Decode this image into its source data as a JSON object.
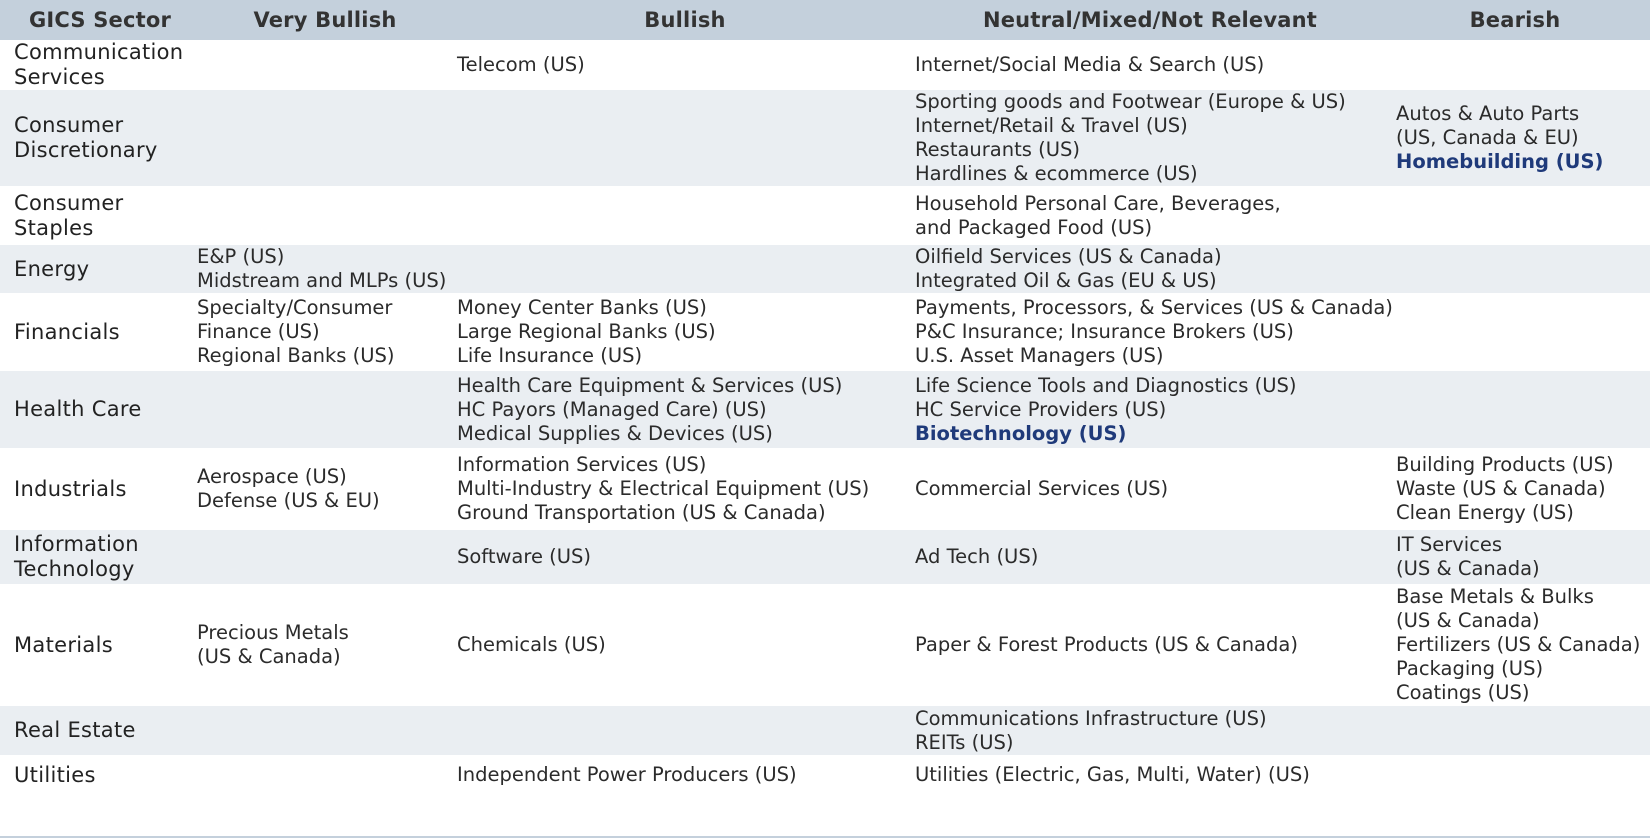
{
  "header": {
    "sector": "GICS Sector",
    "very_bullish": "Very Bullish",
    "bullish": "Bullish",
    "neutral": "Neutral/Mixed/Not Relevant",
    "bearish": "Bearish"
  },
  "rows": [
    {
      "sector": [
        "Communication",
        "Services"
      ],
      "very_bullish": [],
      "bullish": [
        "Telecom (US)"
      ],
      "neutral": [
        "Internet/Social Media & Search (US)"
      ],
      "bearish": []
    },
    {
      "sector": [
        "Consumer",
        "Discretionary"
      ],
      "very_bullish": [],
      "bullish": [],
      "neutral": [
        "Sporting goods and Footwear (Europe & US)",
        "Internet/Retail & Travel (US)",
        "Restaurants (US)",
        "Hardlines & ecommerce (US)"
      ],
      "bearish": [
        "Autos & Auto Parts",
        "(US, Canada & EU)",
        "Homebuilding (US)"
      ]
    },
    {
      "sector": [
        "Consumer",
        "Staples"
      ],
      "very_bullish": [],
      "bullish": [],
      "neutral": [
        "Household Personal Care, Beverages,",
        "and Packaged Food (US)"
      ],
      "bearish": []
    },
    {
      "sector": [
        "Energy"
      ],
      "very_bullish": [
        "E&P (US)",
        "Midstream and MLPs (US)"
      ],
      "bullish": [],
      "neutral": [
        "Oilfield Services (US & Canada)",
        "Integrated Oil & Gas (EU & US)"
      ],
      "bearish": []
    },
    {
      "sector": [
        "Financials"
      ],
      "very_bullish": [
        "Specialty/Consumer",
        "Finance (US)",
        "Regional Banks (US)"
      ],
      "bullish": [
        "Money Center Banks (US)",
        "Large Regional Banks (US)",
        "Life Insurance (US)"
      ],
      "neutral": [
        "Payments, Processors, & Services (US & Canada)",
        "P&C Insurance; Insurance Brokers (US)",
        "U.S. Asset Managers (US)"
      ],
      "bearish": []
    },
    {
      "sector": [
        "Health Care"
      ],
      "very_bullish": [],
      "bullish": [
        "Health Care Equipment & Services (US)",
        "HC Payors (Managed Care) (US)",
        "Medical Supplies & Devices (US)"
      ],
      "neutral": [
        "Life Science Tools and Diagnostics (US)",
        "HC Service Providers (US)",
        "Biotechnology (US)"
      ],
      "bearish": []
    },
    {
      "sector": [
        "Industrials"
      ],
      "very_bullish": [
        "Aerospace (US)",
        "Defense (US & EU)"
      ],
      "bullish": [
        "Information Services (US)",
        "Multi-Industry & Electrical Equipment (US)",
        "Ground Transportation (US & Canada)"
      ],
      "neutral": [
        "Commercial Services (US)"
      ],
      "bearish": [
        "Building Products (US)",
        "Waste (US & Canada)",
        "Clean Energy (US)"
      ]
    },
    {
      "sector": [
        "Information",
        "Technology"
      ],
      "very_bullish": [],
      "bullish": [
        "Software (US)"
      ],
      "neutral": [
        "Ad Tech (US)"
      ],
      "bearish": [
        "IT Services",
        "(US & Canada)"
      ]
    },
    {
      "sector": [
        "Materials"
      ],
      "very_bullish": [
        "Precious Metals",
        "(US & Canada)"
      ],
      "bullish": [
        "Chemicals (US)"
      ],
      "neutral": [
        "Paper & Forest Products (US & Canada)"
      ],
      "bearish": [
        "Base Metals & Bulks",
        "(US & Canada)",
        "Fertilizers (US & Canada)",
        "Packaging (US)",
        "Coatings (US)"
      ]
    },
    {
      "sector": [
        "Real Estate"
      ],
      "very_bullish": [],
      "bullish": [],
      "neutral": [
        "Communications Infrastructure (US)",
        "REITs (US)"
      ],
      "bearish": []
    },
    {
      "sector": [
        "Utilities"
      ],
      "very_bullish": [],
      "bullish": [
        "Independent Power Producers (US)"
      ],
      "neutral": [
        "Utilities (Electric, Gas, Multi, Water) (US)"
      ],
      "bearish": []
    }
  ],
  "highlighted": [
    "Homebuilding (US)",
    "Biotechnology (US)"
  ],
  "colors": {
    "header_bg": "#c4d0dc",
    "alt_row_bg": "#eaeef2",
    "highlight_text": "#1f3a7a",
    "body_text": "#2b2b2b"
  }
}
